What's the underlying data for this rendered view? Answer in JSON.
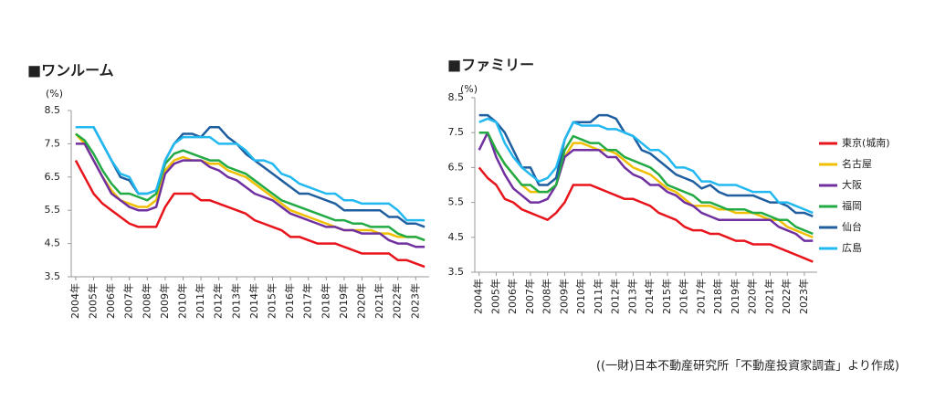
{
  "chart_data": [
    {
      "type": "line",
      "title": "■ワンルーム",
      "y_label": "(%)",
      "categories": [
        "2004年",
        null,
        "2005年",
        null,
        "2006年",
        null,
        "2007年",
        null,
        "2008年",
        null,
        "2009年",
        null,
        "2010年",
        null,
        "2011年",
        null,
        "2012年",
        null,
        "2013年",
        null,
        "2014年",
        null,
        "2015年",
        null,
        "2016年",
        null,
        "2017年",
        null,
        "2018年",
        null,
        "2019年",
        null,
        "2020年",
        null,
        "2021年",
        null,
        "2022年",
        null,
        "2023年",
        null
      ],
      "ylim": [
        3.5,
        8.5
      ],
      "yticks": [
        3.5,
        4.5,
        5.5,
        6.5,
        7.5,
        8.5
      ],
      "series": [
        {
          "color": "#e8141c",
          "values": [
            7.0,
            6.5,
            6.0,
            5.7,
            5.5,
            5.3,
            5.1,
            5.0,
            5.0,
            5.0,
            5.6,
            6.0,
            6.0,
            6.0,
            5.8,
            5.8,
            5.7,
            5.6,
            5.5,
            5.4,
            5.2,
            5.1,
            5.0,
            4.9,
            4.7,
            4.7,
            4.6,
            4.5,
            4.5,
            4.5,
            4.4,
            4.3,
            4.2,
            4.2,
            4.2,
            4.2,
            4.0,
            4.0,
            3.9,
            3.8
          ]
        },
        {
          "color": "#f0c000",
          "values": [
            7.8,
            7.5,
            7.0,
            6.5,
            6.1,
            5.8,
            5.7,
            5.6,
            5.6,
            5.8,
            6.7,
            7.0,
            7.1,
            7.0,
            7.0,
            6.9,
            6.9,
            6.7,
            6.6,
            6.5,
            6.3,
            6.1,
            5.9,
            5.7,
            5.5,
            5.4,
            5.3,
            5.2,
            5.1,
            5.0,
            4.9,
            4.9,
            4.9,
            4.9,
            4.8,
            4.8,
            4.7,
            4.7,
            4.7,
            4.6
          ]
        },
        {
          "color": "#7030a0",
          "values": [
            7.5,
            7.5,
            7.0,
            6.5,
            6.0,
            5.8,
            5.6,
            5.5,
            5.5,
            5.6,
            6.6,
            6.9,
            7.0,
            7.0,
            7.0,
            6.8,
            6.7,
            6.5,
            6.4,
            6.2,
            6.0,
            5.9,
            5.8,
            5.6,
            5.4,
            5.3,
            5.2,
            5.1,
            5.0,
            5.0,
            4.9,
            4.9,
            4.8,
            4.8,
            4.8,
            4.6,
            4.5,
            4.5,
            4.4,
            4.4
          ]
        },
        {
          "color": "#22aa44",
          "values": [
            7.8,
            7.6,
            7.2,
            6.7,
            6.3,
            6.0,
            6.0,
            5.9,
            5.8,
            6.0,
            6.9,
            7.2,
            7.3,
            7.2,
            7.1,
            7.0,
            7.0,
            6.8,
            6.7,
            6.6,
            6.4,
            6.2,
            6.0,
            5.8,
            5.7,
            5.6,
            5.5,
            5.4,
            5.3,
            5.2,
            5.2,
            5.1,
            5.1,
            5.0,
            5.0,
            5.0,
            4.8,
            4.7,
            4.7,
            4.6
          ]
        },
        {
          "color": "#1f5fa0",
          "values": [
            8.0,
            8.0,
            8.0,
            7.5,
            7.0,
            6.5,
            6.4,
            6.0,
            6.0,
            6.1,
            7.0,
            7.5,
            7.8,
            7.8,
            7.7,
            8.0,
            8.0,
            7.7,
            7.5,
            7.2,
            7.0,
            6.8,
            6.6,
            6.4,
            6.2,
            6.0,
            6.0,
            5.9,
            5.8,
            5.7,
            5.5,
            5.5,
            5.5,
            5.5,
            5.5,
            5.3,
            5.3,
            5.1,
            5.1,
            5.0
          ]
        },
        {
          "color": "#22b8f0",
          "values": [
            8.0,
            8.0,
            8.0,
            7.5,
            7.0,
            6.6,
            6.5,
            6.0,
            6.0,
            6.1,
            7.0,
            7.5,
            7.7,
            7.7,
            7.7,
            7.7,
            7.5,
            7.5,
            7.5,
            7.3,
            7.0,
            7.0,
            6.9,
            6.6,
            6.5,
            6.3,
            6.2,
            6.1,
            6.0,
            6.0,
            5.8,
            5.8,
            5.7,
            5.7,
            5.7,
            5.7,
            5.5,
            5.2,
            5.2,
            5.2
          ]
        }
      ]
    },
    {
      "type": "line",
      "title": "■ファミリー",
      "y_label": "(%)",
      "legend": "right",
      "categories": [
        "2004年",
        null,
        "2005年",
        null,
        "2006年",
        null,
        "2007年",
        null,
        "2008年",
        null,
        "2009年",
        null,
        "2010年",
        null,
        "2011年",
        null,
        "2012年",
        null,
        "2013年",
        null,
        "2014年",
        null,
        "2015年",
        null,
        "2016年",
        null,
        "2017年",
        null,
        "2018年",
        null,
        "2019年",
        null,
        "2020年",
        null,
        "2021年",
        null,
        "2022年",
        null,
        "2023年",
        null
      ],
      "ylim": [
        3.5,
        8.5
      ],
      "yticks": [
        3.5,
        4.5,
        5.5,
        6.5,
        7.5,
        8.5
      ],
      "series": [
        {
          "name": "東京(城南)",
          "color": "#e8141c",
          "values": [
            6.5,
            6.2,
            6.0,
            5.6,
            5.5,
            5.3,
            5.2,
            5.1,
            5.0,
            5.2,
            5.5,
            6.0,
            6.0,
            6.0,
            5.9,
            5.8,
            5.7,
            5.6,
            5.6,
            5.5,
            5.4,
            5.2,
            5.1,
            5.0,
            4.8,
            4.7,
            4.7,
            4.6,
            4.6,
            4.5,
            4.4,
            4.4,
            4.3,
            4.3,
            4.3,
            4.2,
            4.1,
            4.0,
            3.9,
            3.8
          ]
        },
        {
          "name": "名古屋",
          "color": "#f0c000",
          "values": [
            7.5,
            7.5,
            7.0,
            6.6,
            6.3,
            6.0,
            5.8,
            5.8,
            5.8,
            6.0,
            6.8,
            7.2,
            7.2,
            7.1,
            7.0,
            7.0,
            6.9,
            6.7,
            6.5,
            6.4,
            6.3,
            6.1,
            5.9,
            5.8,
            5.6,
            5.4,
            5.4,
            5.4,
            5.3,
            5.3,
            5.2,
            5.2,
            5.2,
            5.1,
            5.0,
            5.0,
            4.8,
            4.7,
            4.6,
            4.5
          ]
        },
        {
          "name": "大阪",
          "color": "#7030a0",
          "values": [
            7.0,
            7.5,
            6.8,
            6.3,
            5.9,
            5.7,
            5.5,
            5.5,
            5.6,
            6.0,
            6.8,
            7.0,
            7.0,
            7.0,
            7.0,
            6.8,
            6.8,
            6.5,
            6.3,
            6.2,
            6.0,
            6.0,
            5.8,
            5.7,
            5.5,
            5.4,
            5.2,
            5.1,
            5.0,
            5.0,
            5.0,
            5.0,
            5.0,
            5.0,
            5.0,
            4.8,
            4.7,
            4.6,
            4.4,
            4.4
          ]
        },
        {
          "name": "福岡",
          "color": "#22aa44",
          "values": [
            7.5,
            7.5,
            7.0,
            6.6,
            6.3,
            6.0,
            6.0,
            5.8,
            5.8,
            6.0,
            7.0,
            7.4,
            7.3,
            7.2,
            7.2,
            7.0,
            7.0,
            6.8,
            6.7,
            6.6,
            6.5,
            6.3,
            6.0,
            5.9,
            5.8,
            5.7,
            5.5,
            5.5,
            5.4,
            5.3,
            5.3,
            5.3,
            5.2,
            5.2,
            5.1,
            5.0,
            5.0,
            4.8,
            4.7,
            4.6
          ]
        },
        {
          "name": "仙台",
          "color": "#1f5fa0",
          "values": [
            8.0,
            8.0,
            7.8,
            7.5,
            7.0,
            6.5,
            6.5,
            6.0,
            6.0,
            6.2,
            7.3,
            7.8,
            7.8,
            7.8,
            8.0,
            8.0,
            7.9,
            7.5,
            7.4,
            7.0,
            6.9,
            6.7,
            6.5,
            6.3,
            6.2,
            6.1,
            5.9,
            6.0,
            5.8,
            5.7,
            5.7,
            5.7,
            5.7,
            5.6,
            5.5,
            5.5,
            5.4,
            5.2,
            5.2,
            5.1
          ]
        },
        {
          "name": "広島",
          "color": "#22b8f0",
          "values": [
            7.8,
            7.9,
            7.8,
            7.2,
            6.8,
            6.5,
            6.3,
            6.1,
            6.2,
            6.5,
            7.3,
            7.8,
            7.7,
            7.7,
            7.7,
            7.6,
            7.6,
            7.5,
            7.4,
            7.2,
            7.0,
            7.0,
            6.8,
            6.5,
            6.5,
            6.4,
            6.1,
            6.1,
            6.0,
            6.0,
            6.0,
            5.9,
            5.8,
            5.8,
            5.8,
            5.5,
            5.5,
            5.4,
            5.3,
            5.2
          ]
        }
      ]
    }
  ],
  "source": "((一財)日本不動産研究所「不動産投資家調査」より作成)"
}
